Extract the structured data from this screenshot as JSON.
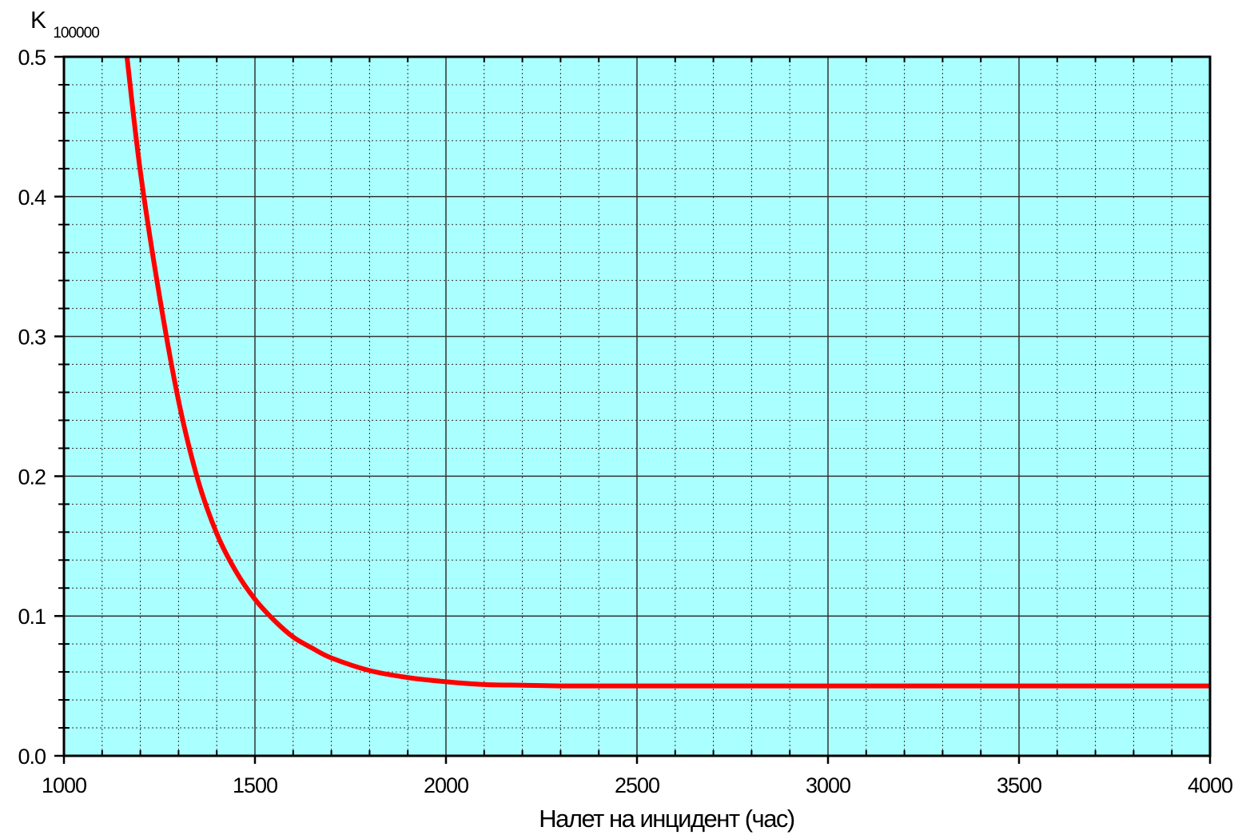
{
  "chart_data": {
    "type": "line",
    "ylabel": "K",
    "ylabel_subscript": "100000",
    "xlabel": "Налет на инцидент (час)",
    "xlim": [
      1000,
      4000
    ],
    "ylim": [
      0.0,
      0.5
    ],
    "x_major_ticks": [
      1000,
      1500,
      2000,
      2500,
      3000,
      3500,
      4000
    ],
    "x_tick_labels": [
      "1000",
      "1500",
      "2000",
      "2500",
      "3000",
      "3500",
      "4000"
    ],
    "x_minor_step": 100,
    "y_major_ticks": [
      0.0,
      0.1,
      0.2,
      0.3,
      0.4,
      0.5
    ],
    "y_tick_labels": [
      "0.0",
      "0.1",
      "0.2",
      "0.3",
      "0.4",
      "0.5"
    ],
    "y_minor_step": 0.02,
    "grid": true,
    "plot_background": "#aaffff",
    "series": [
      {
        "color": "#ff0000",
        "x": [
          1165,
          1200,
          1250,
          1300,
          1350,
          1400,
          1450,
          1500,
          1550,
          1600,
          1650,
          1700,
          1800,
          1900,
          2000,
          2100,
          2200,
          2300,
          2400,
          2500,
          2600,
          3000,
          3500,
          4000
        ],
        "y": [
          0.5,
          0.418,
          0.329,
          0.254,
          0.198,
          0.159,
          0.132,
          0.112,
          0.097,
          0.085,
          0.077,
          0.07,
          0.061,
          0.056,
          0.053,
          0.051,
          0.0505,
          0.05,
          0.05,
          0.05,
          0.05,
          0.05,
          0.05,
          0.05
        ]
      }
    ]
  }
}
